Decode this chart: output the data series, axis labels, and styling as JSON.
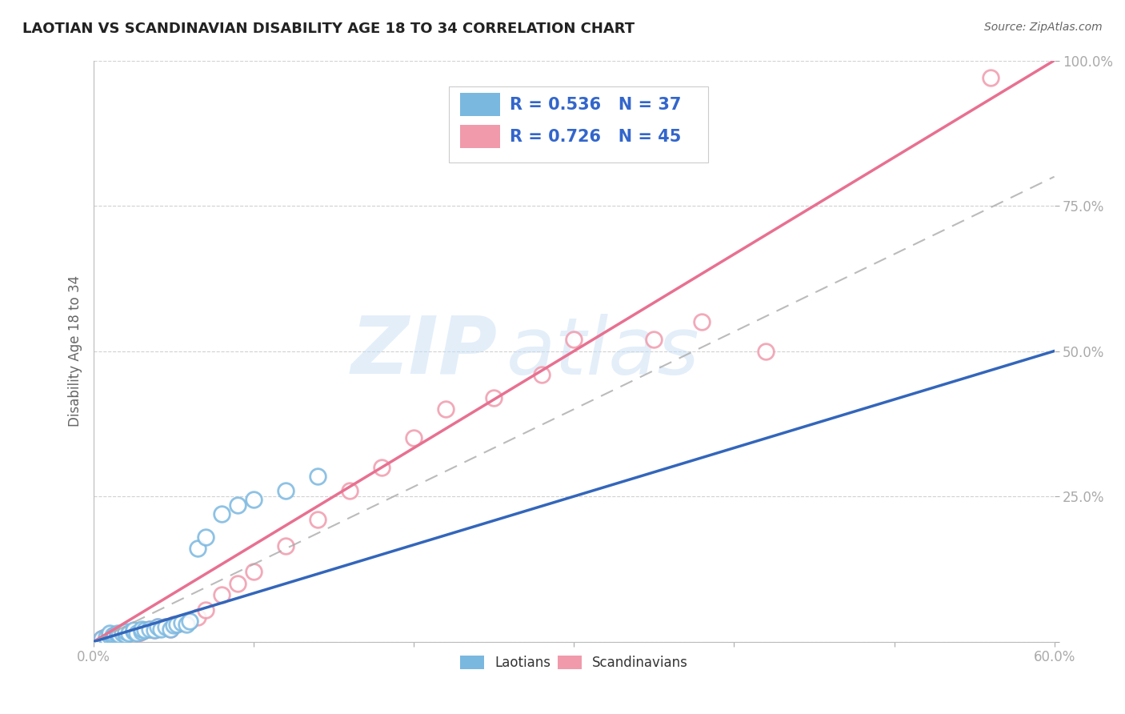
{
  "title": "LAOTIAN VS SCANDINAVIAN DISABILITY AGE 18 TO 34 CORRELATION CHART",
  "source": "Source: ZipAtlas.com",
  "ylabel": "Disability Age 18 to 34",
  "xlim": [
    0.0,
    0.6
  ],
  "ylim": [
    0.0,
    1.0
  ],
  "laotian_color": "#7ab8e0",
  "scandinavian_color": "#f09aac",
  "laotian_line_color": "#3366bb",
  "scandinavian_line_color": "#e87090",
  "trend_label_color": "#3366cc",
  "R_laotian": 0.536,
  "N_laotian": 37,
  "R_scandinavian": 0.726,
  "N_scandinavian": 45,
  "background_color": "#ffffff",
  "grid_color": "#cccccc",
  "laotian_scatter_x": [
    0.005,
    0.008,
    0.01,
    0.01,
    0.012,
    0.013,
    0.015,
    0.015,
    0.016,
    0.018,
    0.02,
    0.02,
    0.022,
    0.025,
    0.025,
    0.027,
    0.03,
    0.03,
    0.032,
    0.035,
    0.038,
    0.04,
    0.042,
    0.045,
    0.048,
    0.05,
    0.052,
    0.055,
    0.058,
    0.06,
    0.065,
    0.07,
    0.08,
    0.09,
    0.1,
    0.12,
    0.14
  ],
  "laotian_scatter_y": [
    0.005,
    0.008,
    0.01,
    0.015,
    0.01,
    0.012,
    0.01,
    0.015,
    0.012,
    0.015,
    0.012,
    0.018,
    0.015,
    0.018,
    0.02,
    0.015,
    0.018,
    0.022,
    0.02,
    0.022,
    0.02,
    0.025,
    0.022,
    0.025,
    0.022,
    0.028,
    0.03,
    0.032,
    0.03,
    0.035,
    0.16,
    0.18,
    0.22,
    0.235,
    0.245,
    0.26,
    0.285
  ],
  "scandinavian_scatter_x": [
    0.005,
    0.006,
    0.007,
    0.008,
    0.009,
    0.01,
    0.011,
    0.012,
    0.013,
    0.014,
    0.015,
    0.016,
    0.018,
    0.02,
    0.022,
    0.025,
    0.028,
    0.03,
    0.032,
    0.035,
    0.038,
    0.04,
    0.045,
    0.048,
    0.05,
    0.055,
    0.06,
    0.065,
    0.07,
    0.08,
    0.09,
    0.1,
    0.12,
    0.14,
    0.16,
    0.18,
    0.2,
    0.22,
    0.25,
    0.28,
    0.3,
    0.35,
    0.38,
    0.42,
    0.56
  ],
  "scandinavian_scatter_y": [
    0.005,
    0.006,
    0.007,
    0.008,
    0.009,
    0.01,
    0.011,
    0.012,
    0.01,
    0.012,
    0.01,
    0.012,
    0.015,
    0.012,
    0.015,
    0.018,
    0.015,
    0.018,
    0.02,
    0.022,
    0.02,
    0.025,
    0.025,
    0.022,
    0.03,
    0.032,
    0.035,
    0.042,
    0.055,
    0.08,
    0.1,
    0.12,
    0.165,
    0.21,
    0.26,
    0.3,
    0.35,
    0.4,
    0.42,
    0.46,
    0.52,
    0.52,
    0.55,
    0.5,
    0.97
  ],
  "laotian_trend_x": [
    0.0,
    0.6
  ],
  "laotian_trend_y": [
    0.0,
    0.5
  ],
  "scandinavian_trend_x": [
    0.0,
    0.6
  ],
  "scandinavian_trend_y": [
    0.0,
    1.0
  ],
  "dashed_trend_x": [
    0.0,
    0.6
  ],
  "dashed_trend_y": [
    0.0,
    0.8
  ]
}
